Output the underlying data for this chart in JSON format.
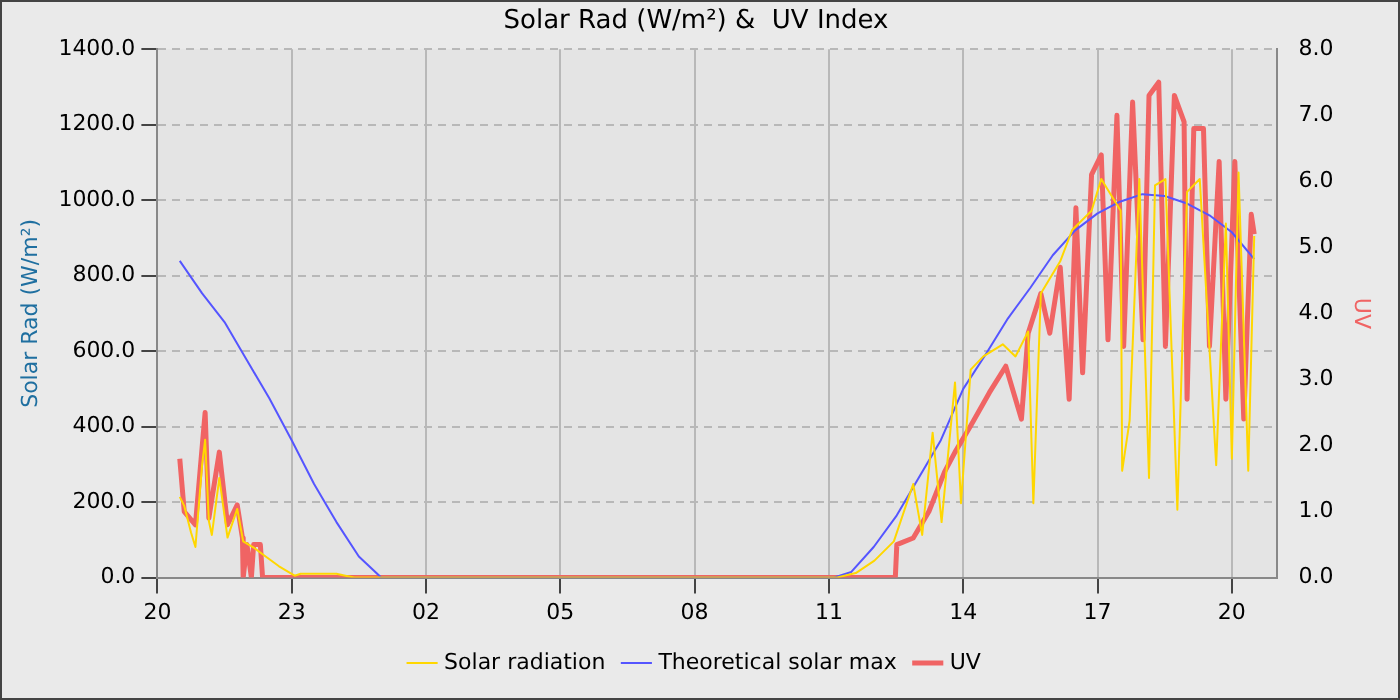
{
  "chart_data": {
    "type": "line",
    "title": "Solar Rad (W/m²) &  UV Index",
    "ylabel": "Solar Rad (W/m²)",
    "y2label": "UV",
    "xlim": [
      "--01-01T20:00",
      "--01-02T21:00"
    ],
    "xticks": [
      {
        "value": "--01-01T20:00",
        "label": "20"
      },
      {
        "value": "--01-01T23:00",
        "label": "23"
      },
      {
        "value": "--01-02T02:00",
        "label": "02"
      },
      {
        "value": "--01-02T05:00",
        "label": "05"
      },
      {
        "value": "--01-02T08:00",
        "label": "08"
      },
      {
        "value": "--01-02T11:00",
        "label": "11"
      },
      {
        "value": "--01-02T14:00",
        "label": "14"
      },
      {
        "value": "--01-02T17:00",
        "label": "17"
      },
      {
        "value": "--01-02T20:00",
        "label": "20"
      }
    ],
    "ylim": [
      0,
      1400
    ],
    "yticks": [
      {
        "value": 0,
        "label": "0.0"
      },
      {
        "value": 200,
        "label": "200.0"
      },
      {
        "value": 400,
        "label": "400.0"
      },
      {
        "value": 600,
        "label": "600.0"
      },
      {
        "value": 800,
        "label": "800.0"
      },
      {
        "value": 1000,
        "label": "1000.0"
      },
      {
        "value": 1200,
        "label": "1200.0"
      },
      {
        "value": 1400,
        "label": "1400.0"
      }
    ],
    "y2lim": [
      0,
      8
    ],
    "y2ticks": [
      {
        "value": 0,
        "label": "0.0"
      },
      {
        "value": 1,
        "label": "1.0"
      },
      {
        "value": 2,
        "label": "2.0"
      },
      {
        "value": 3,
        "label": "3.0"
      },
      {
        "value": 4,
        "label": "4.0"
      },
      {
        "value": 5,
        "label": "5.0"
      },
      {
        "value": 6,
        "label": "6.0"
      },
      {
        "value": 7,
        "label": "7.0"
      },
      {
        "value": 8,
        "label": "8.0"
      }
    ],
    "grid": true,
    "legend": "bottom",
    "marker": "none",
    "line_style": "solid",
    "series": [
      {
        "name": "Solar radiation",
        "color": "#ffd700",
        "x": [
          "--01-01T20:30",
          "--01-01T20:36",
          "--01-01T20:45",
          "--01-01T20:51",
          "--01-01T21:00",
          "--01-01T21:04",
          "--01-01T21:09",
          "--01-01T21:13",
          "--01-01T21:23",
          "--01-01T21:34",
          "--01-01T21:47",
          "--01-01T21:55",
          "--01-01T22:08",
          "--01-01T22:21",
          "--01-01T22:43",
          "--01-01T23:04",
          "--01-01T23:12",
          "--01-02T00:00",
          "--01-02T00:12",
          "--01-02T00:24",
          "--01-02T11:10",
          "--01-02T11:36",
          "--01-02T12:01",
          "--01-02T12:27",
          "--01-02T12:53",
          "--01-02T13:05",
          "--01-02T13:19",
          "--01-02T13:31",
          "--01-02T13:49",
          "--01-02T13:57",
          "--01-02T14:10",
          "--01-02T14:27",
          "--01-02T14:53",
          "--01-02T15:10",
          "--01-02T15:27",
          "--01-02T15:34",
          "--01-02T15:44",
          "--01-02T16:10",
          "--01-02T16:26",
          "--01-02T16:52",
          "--01-02T17:05",
          "--01-02T17:31",
          "--01-02T17:33",
          "--01-02T17:43",
          "--01-02T17:56",
          "--01-02T18:09",
          "--01-02T18:17",
          "--01-02T18:31",
          "--01-02T18:47",
          "--01-02T19:00",
          "--01-02T19:17",
          "--01-02T19:39",
          "--01-02T19:52",
          "--01-02T20:00",
          "--01-02T20:09",
          "--01-02T20:22",
          "--01-02T20:30"
        ],
        "values": [
          214,
          190,
          120,
          81,
          300,
          365,
          150,
          113,
          264,
          106,
          182,
          96,
          81,
          62,
          30,
          5,
          10,
          10,
          5,
          0,
          0,
          12,
          45,
          96,
          248,
          113,
          384,
          147,
          517,
          197,
          551,
          586,
          618,
          586,
          652,
          197,
          753,
          838,
          921,
          972,
          1056,
          972,
          283,
          416,
          1056,
          264,
          1039,
          1056,
          180,
          1022,
          1056,
          298,
          938,
          315,
          1073,
          283,
          905
        ]
      },
      {
        "name": "Theoretical solar max",
        "color": "#5555ff",
        "x": [
          "--01-01T20:30",
          "--01-01T21:00",
          "--01-01T21:30",
          "--01-01T22:00",
          "--01-01T22:30",
          "--01-01T23:00",
          "--01-01T23:30",
          "--01-02T00:00",
          "--01-02T00:30",
          "--01-02T01:00",
          "--01-02T11:06",
          "--01-02T11:30",
          "--01-02T12:00",
          "--01-02T12:30",
          "--01-02T13:00",
          "--01-02T13:30",
          "--01-02T14:00",
          "--01-02T14:30",
          "--01-02T15:00",
          "--01-02T15:30",
          "--01-02T16:00",
          "--01-02T16:30",
          "--01-02T17:00",
          "--01-02T17:30",
          "--01-02T18:00",
          "--01-02T18:30",
          "--01-02T19:00",
          "--01-02T19:30",
          "--01-02T20:00",
          "--01-02T20:30"
        ],
        "values": [
          839,
          753,
          677,
          576,
          475,
          364,
          248,
          147,
          56,
          0,
          0,
          15,
          81,
          162,
          263,
          364,
          500,
          591,
          687,
          768,
          854,
          920,
          965,
          996,
          1016,
          1011,
          991,
          960,
          915,
          844
        ]
      },
      {
        "name": "UV",
        "color": "#f06464",
        "axis": "y2",
        "x": [
          "--01-01T20:30",
          "--01-01T20:36",
          "--01-01T20:51",
          "--01-01T21:04",
          "--01-01T21:09",
          "--01-01T21:23",
          "--01-01T21:34",
          "--01-01T21:47",
          "--01-01T21:54",
          "--01-01T21:55",
          "--01-01T22:00",
          "--01-01T22:06",
          "--01-01T22:09",
          "--01-01T22:18",
          "--01-01T22:21",
          "--01-02T12:29",
          "--01-02T12:31",
          "--01-02T12:53",
          "--01-02T13:14",
          "--01-02T13:35",
          "--01-02T13:49",
          "--01-02T14:10",
          "--01-02T14:35",
          "--01-02T14:57",
          "--01-02T15:18",
          "--01-02T15:27",
          "--01-02T15:44",
          "--01-02T15:56",
          "--01-02T16:10",
          "--01-02T16:22",
          "--01-02T16:31",
          "--01-02T16:40",
          "--01-02T16:52",
          "--01-02T17:05",
          "--01-02T17:14",
          "--01-02T17:26",
          "--01-02T17:35",
          "--01-02T17:47",
          "--01-02T18:01",
          "--01-02T18:09",
          "--01-02T18:22",
          "--01-02T18:31",
          "--01-02T18:43",
          "--01-02T18:56",
          "--01-02T19:00",
          "--01-02T19:09",
          "--01-02T19:22",
          "--01-02T19:30",
          "--01-02T19:43",
          "--01-02T19:52",
          "--01-02T20:04",
          "--01-02T20:16",
          "--01-02T20:26",
          "--01-02T20:30"
        ],
        "values": [
          1.8,
          1.0,
          0.8,
          2.5,
          0.9,
          1.9,
          0.8,
          1.1,
          0.6,
          0.0,
          0.5,
          0.0,
          0.5,
          0.5,
          0.0,
          0.0,
          0.5,
          0.6,
          1.0,
          1.6,
          1.9,
          2.3,
          2.8,
          3.2,
          2.4,
          3.7,
          4.3,
          3.7,
          4.7,
          2.7,
          5.6,
          3.1,
          6.1,
          6.4,
          3.6,
          7.0,
          3.5,
          7.2,
          3.6,
          7.3,
          7.5,
          3.5,
          7.3,
          6.9,
          2.7,
          6.8,
          6.8,
          3.5,
          6.3,
          2.7,
          6.3,
          2.4,
          5.5,
          5.2
        ]
      }
    ]
  }
}
